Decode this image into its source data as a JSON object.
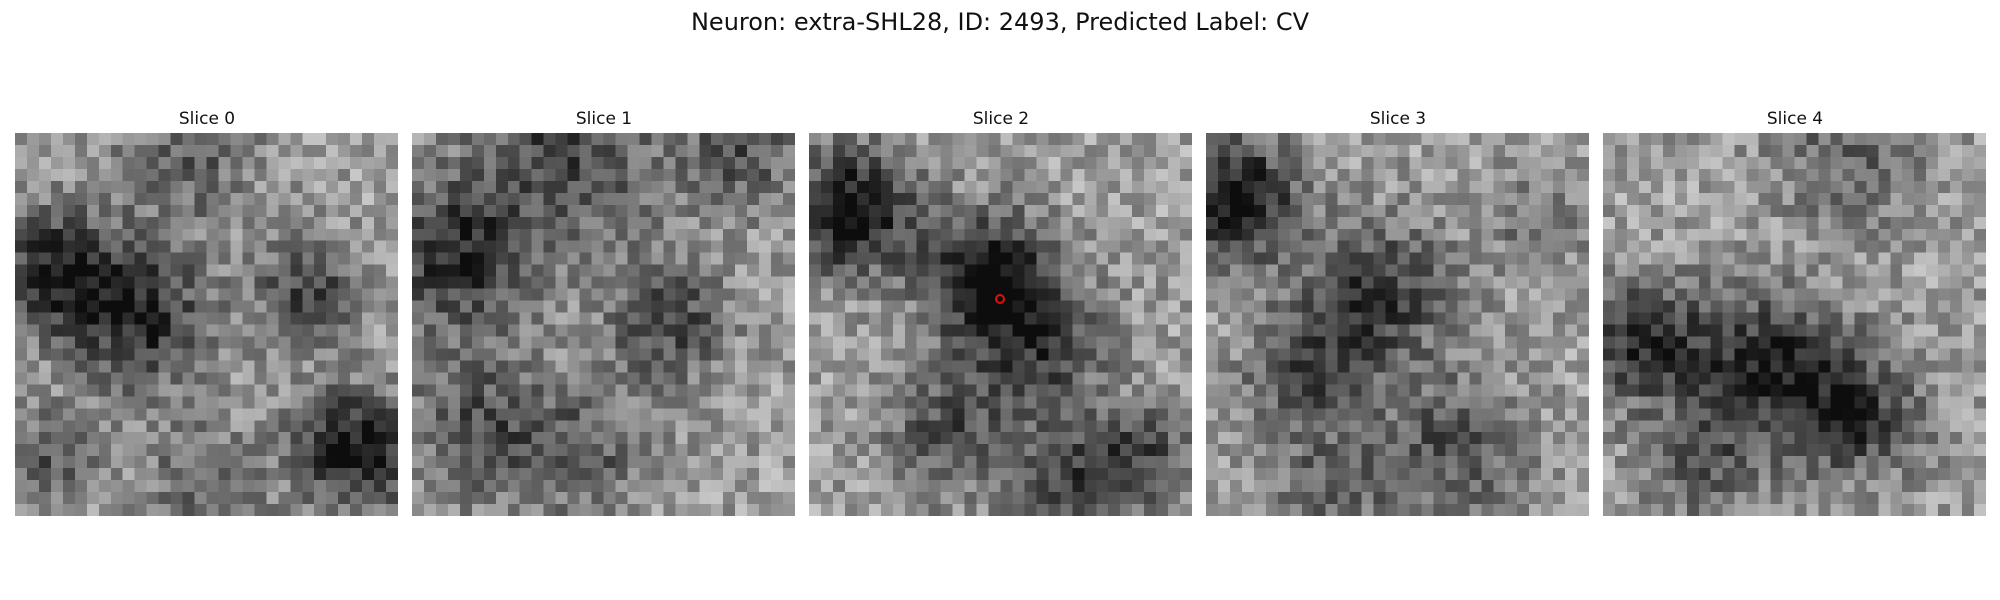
{
  "figure": {
    "title": "Neuron: extra-SHL28, ID: 2493, Predicted Label: CV"
  },
  "panels": [
    {
      "title": "Slice 0"
    },
    {
      "title": "Slice 1"
    },
    {
      "title": "Slice 2"
    },
    {
      "title": "Slice 3"
    },
    {
      "title": "Slice 4"
    }
  ],
  "colors": {
    "background": "#ffffff",
    "marker": "#e01010"
  },
  "image_grid_size": 32,
  "marker": {
    "slice_index": 2,
    "shape": "circle"
  }
}
